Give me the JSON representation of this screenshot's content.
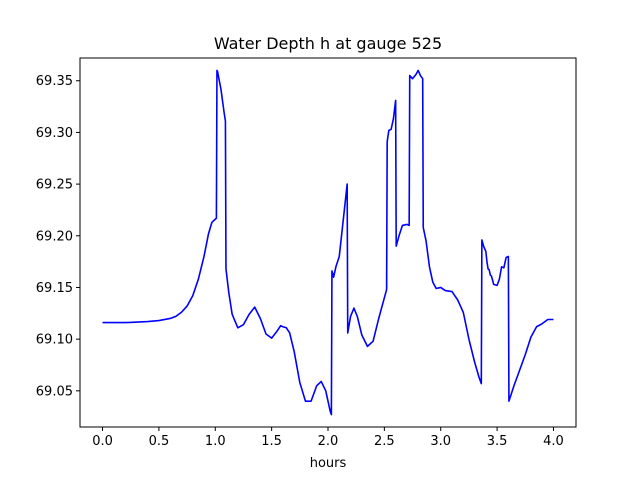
{
  "chart_data": {
    "type": "line",
    "title": "Water Depth h at gauge 525",
    "xlabel": "hours",
    "ylabel": "",
    "xlim": [
      -0.2,
      4.2
    ],
    "ylim": [
      69.015,
      69.372
    ],
    "grid": false,
    "legend": "none",
    "xticks": [
      {
        "value": 0.0,
        "label": "0.0"
      },
      {
        "value": 0.5,
        "label": "0.5"
      },
      {
        "value": 1.0,
        "label": "1.0"
      },
      {
        "value": 1.5,
        "label": "1.5"
      },
      {
        "value": 2.0,
        "label": "2.0"
      },
      {
        "value": 2.5,
        "label": "2.5"
      },
      {
        "value": 3.0,
        "label": "3.0"
      },
      {
        "value": 3.5,
        "label": "3.5"
      },
      {
        "value": 4.0,
        "label": "4.0"
      }
    ],
    "yticks": [
      {
        "value": 69.05,
        "label": "69.05"
      },
      {
        "value": 69.1,
        "label": "69.10"
      },
      {
        "value": 69.15,
        "label": "69.15"
      },
      {
        "value": 69.2,
        "label": "69.20"
      },
      {
        "value": 69.25,
        "label": "69.25"
      },
      {
        "value": 69.3,
        "label": "69.30"
      },
      {
        "value": 69.35,
        "label": "69.35"
      }
    ],
    "series": [
      {
        "color": "#0000ff",
        "points": [
          [
            0.0,
            69.116
          ],
          [
            0.2,
            69.116
          ],
          [
            0.4,
            69.117
          ],
          [
            0.5,
            69.118
          ],
          [
            0.6,
            69.12
          ],
          [
            0.65,
            69.122
          ],
          [
            0.7,
            69.126
          ],
          [
            0.75,
            69.132
          ],
          [
            0.8,
            69.142
          ],
          [
            0.85,
            69.158
          ],
          [
            0.9,
            69.18
          ],
          [
            0.94,
            69.202
          ],
          [
            0.97,
            69.213
          ],
          [
            1.0,
            69.216
          ],
          [
            1.01,
            69.217
          ],
          [
            1.015,
            69.36
          ],
          [
            1.02,
            69.359
          ],
          [
            1.05,
            69.342
          ],
          [
            1.08,
            69.318
          ],
          [
            1.09,
            69.311
          ],
          [
            1.095,
            69.168
          ],
          [
            1.12,
            69.145
          ],
          [
            1.15,
            69.124
          ],
          [
            1.2,
            69.111
          ],
          [
            1.25,
            69.114
          ],
          [
            1.3,
            69.124
          ],
          [
            1.35,
            69.131
          ],
          [
            1.4,
            69.12
          ],
          [
            1.45,
            69.105
          ],
          [
            1.5,
            69.101
          ],
          [
            1.55,
            69.108
          ],
          [
            1.58,
            69.113
          ],
          [
            1.6,
            69.112
          ],
          [
            1.63,
            69.111
          ],
          [
            1.66,
            69.106
          ],
          [
            1.7,
            69.088
          ],
          [
            1.75,
            69.058
          ],
          [
            1.8,
            69.04
          ],
          [
            1.85,
            69.04
          ],
          [
            1.9,
            69.055
          ],
          [
            1.94,
            69.059
          ],
          [
            1.98,
            69.05
          ],
          [
            2.02,
            69.03
          ],
          [
            2.03,
            69.027
          ],
          [
            2.035,
            69.166
          ],
          [
            2.05,
            69.16
          ],
          [
            2.07,
            69.17
          ],
          [
            2.1,
            69.18
          ],
          [
            2.13,
            69.21
          ],
          [
            2.16,
            69.24
          ],
          [
            2.17,
            69.25
          ],
          [
            2.175,
            69.106
          ],
          [
            2.2,
            69.122
          ],
          [
            2.23,
            69.13
          ],
          [
            2.26,
            69.122
          ],
          [
            2.3,
            69.104
          ],
          [
            2.35,
            69.093
          ],
          [
            2.4,
            69.098
          ],
          [
            2.45,
            69.12
          ],
          [
            2.5,
            69.14
          ],
          [
            2.52,
            69.148
          ],
          [
            2.525,
            69.291
          ],
          [
            2.53,
            69.295
          ],
          [
            2.54,
            69.302
          ],
          [
            2.56,
            69.303
          ],
          [
            2.58,
            69.313
          ],
          [
            2.6,
            69.331
          ],
          [
            2.605,
            69.19
          ],
          [
            2.63,
            69.2
          ],
          [
            2.66,
            69.21
          ],
          [
            2.7,
            69.211
          ],
          [
            2.72,
            69.21
          ],
          [
            2.725,
            69.355
          ],
          [
            2.75,
            69.352
          ],
          [
            2.78,
            69.356
          ],
          [
            2.8,
            69.36
          ],
          [
            2.82,
            69.355
          ],
          [
            2.84,
            69.352
          ],
          [
            2.845,
            69.208
          ],
          [
            2.87,
            69.195
          ],
          [
            2.9,
            69.17
          ],
          [
            2.93,
            69.155
          ],
          [
            2.96,
            69.149
          ],
          [
            3.0,
            69.15
          ],
          [
            3.04,
            69.147
          ],
          [
            3.1,
            69.146
          ],
          [
            3.15,
            69.138
          ],
          [
            3.2,
            69.126
          ],
          [
            3.25,
            69.1
          ],
          [
            3.3,
            69.078
          ],
          [
            3.34,
            69.063
          ],
          [
            3.36,
            69.057
          ],
          [
            3.365,
            69.196
          ],
          [
            3.38,
            69.19
          ],
          [
            3.4,
            69.185
          ],
          [
            3.41,
            69.175
          ],
          [
            3.42,
            69.168
          ],
          [
            3.43,
            69.167
          ],
          [
            3.44,
            69.162
          ],
          [
            3.45,
            69.161
          ],
          [
            3.47,
            69.153
          ],
          [
            3.5,
            69.152
          ],
          [
            3.52,
            69.158
          ],
          [
            3.54,
            69.17
          ],
          [
            3.56,
            69.169
          ],
          [
            3.58,
            69.179
          ],
          [
            3.6,
            69.18
          ],
          [
            3.605,
            69.04
          ],
          [
            3.65,
            69.055
          ],
          [
            3.7,
            69.07
          ],
          [
            3.75,
            69.085
          ],
          [
            3.8,
            69.102
          ],
          [
            3.85,
            69.112
          ],
          [
            3.9,
            69.115
          ],
          [
            3.95,
            69.119
          ],
          [
            4.0,
            69.119
          ]
        ]
      }
    ]
  }
}
